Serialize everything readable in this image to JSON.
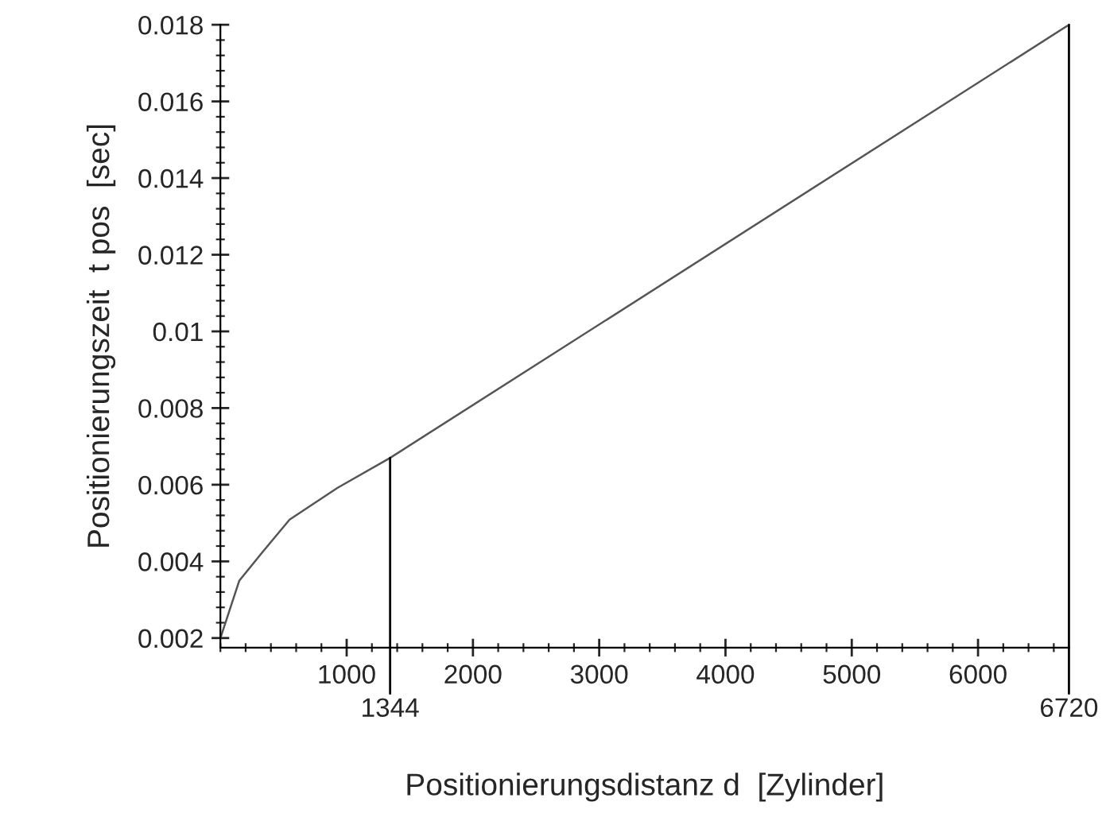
{
  "chart_data": {
    "type": "line",
    "xlabel": "Positionierungsdistanz d  [Zylinder]",
    "ylabel": "Positionierungszeit  t pos  [sec]",
    "x": [
      0,
      150,
      338,
      548,
      928,
      1344,
      6720
    ],
    "series": [
      {
        "color": "#555555",
        "values": [
          0.002,
          0.0035,
          0.00426,
          0.00509,
          0.00592,
          0.0067,
          0.018
        ]
      }
    ],
    "xlim": [
      0,
      6720
    ],
    "ylim": [
      0.00175,
      0.018
    ],
    "xticks": [
      1000,
      2000,
      3000,
      4000,
      5000,
      6000
    ],
    "yticks": [
      0.002,
      0.004,
      0.006,
      0.008,
      0.01,
      0.012,
      0.014,
      0.016,
      0.018
    ],
    "ref_lines": [
      {
        "axis": "x",
        "value": 1344,
        "label": "1344",
        "color": "#000000"
      },
      {
        "axis": "x",
        "value": 6720,
        "label": "6720",
        "color": "#000000"
      }
    ],
    "grid": false,
    "legend": false,
    "marker": "none",
    "line_style": "solid"
  }
}
